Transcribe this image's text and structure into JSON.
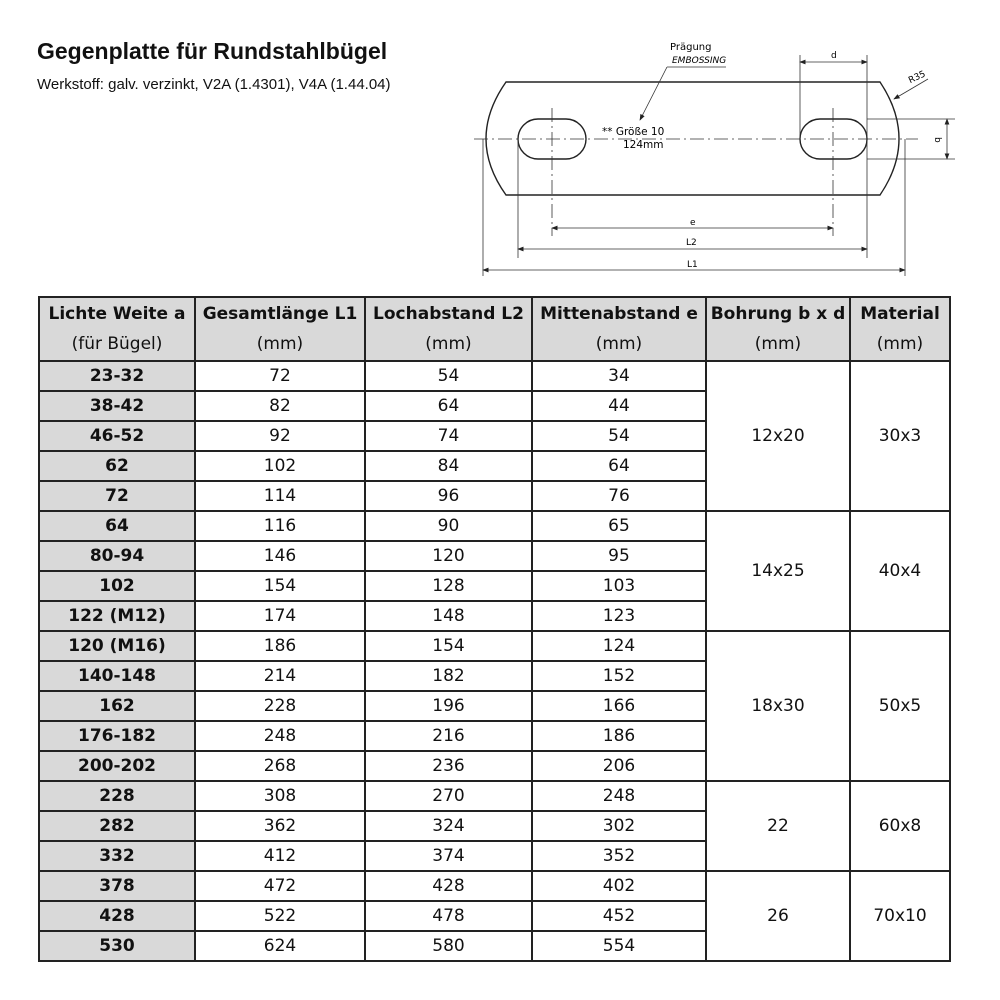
{
  "title": "Gegenplatte für Rundstahlbügel",
  "subtitle": "Werkstoff: galv. verzinkt, V2A (1.4301), V4A (1.44.04)",
  "drawing": {
    "embossing_label": "Prägung",
    "embossing_label_en": "EMBOSSING",
    "stamp_line1": "** Größe 10",
    "stamp_line2": "124mm",
    "dim_d": "d",
    "dim_b": "b",
    "dim_r": "R35",
    "dim_e": "e",
    "dim_l2": "L2",
    "dim_l1": "L1"
  },
  "table": {
    "headers": [
      {
        "title": "Lichte Weite a",
        "unit": "(für Bügel)"
      },
      {
        "title": "Gesamtlänge L1",
        "unit": "(mm)"
      },
      {
        "title": "Lochabstand L2",
        "unit": "(mm)"
      },
      {
        "title": "Mittenabstand e",
        "unit": "(mm)"
      },
      {
        "title": "Bohrung b x d",
        "unit": "(mm)"
      },
      {
        "title": "Material",
        "unit": "(mm)"
      }
    ],
    "groups": [
      {
        "bohrung": "12x20",
        "material": "30x3",
        "rows": [
          [
            "23-32",
            "72",
            "54",
            "34"
          ],
          [
            "38-42",
            "82",
            "64",
            "44"
          ],
          [
            "46-52",
            "92",
            "74",
            "54"
          ],
          [
            "62",
            "102",
            "84",
            "64"
          ],
          [
            "72",
            "114",
            "96",
            "76"
          ]
        ]
      },
      {
        "bohrung": "14x25",
        "material": "40x4",
        "rows": [
          [
            "64",
            "116",
            "90",
            "65"
          ],
          [
            "80-94",
            "146",
            "120",
            "95"
          ],
          [
            "102",
            "154",
            "128",
            "103"
          ],
          [
            "122 (M12)",
            "174",
            "148",
            "123"
          ]
        ]
      },
      {
        "bohrung": "18x30",
        "material": "50x5",
        "rows": [
          [
            "120 (M16)",
            "186",
            "154",
            "124"
          ],
          [
            "140-148",
            "214",
            "182",
            "152"
          ],
          [
            "162",
            "228",
            "196",
            "166"
          ],
          [
            "176-182",
            "248",
            "216",
            "186"
          ],
          [
            "200-202",
            "268",
            "236",
            "206"
          ]
        ]
      },
      {
        "bohrung": "22",
        "material": "60x8",
        "rows": [
          [
            "228",
            "308",
            "270",
            "248"
          ],
          [
            "282",
            "362",
            "324",
            "302"
          ],
          [
            "332",
            "412",
            "374",
            "352"
          ]
        ]
      },
      {
        "bohrung": "26",
        "material": "70x10",
        "rows": [
          [
            "378",
            "472",
            "428",
            "402"
          ],
          [
            "428",
            "522",
            "478",
            "452"
          ],
          [
            "530",
            "624",
            "580",
            "554"
          ]
        ]
      }
    ]
  }
}
